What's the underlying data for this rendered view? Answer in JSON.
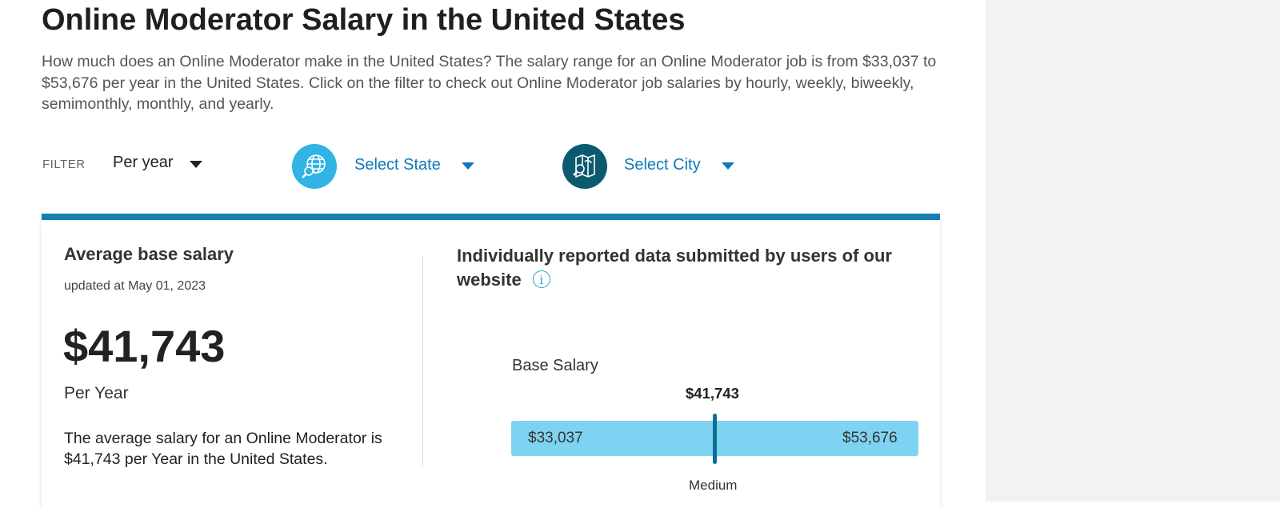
{
  "page": {
    "title": "Online Moderator Salary in the United States",
    "intro": "How much does an Online Moderator make in the United States? The salary range for an Online Moderator job is from $33,037 to $53,676 per year in the United States. Click on the filter to check out Online Moderator job salaries by hourly, weekly, biweekly, semimonthly, monthly, and yearly."
  },
  "filter": {
    "label": "FILTER",
    "period": "Per year",
    "state": "Select State",
    "city": "Select City"
  },
  "summary": {
    "heading": "Average base salary",
    "updated": "updated at May 01, 2023",
    "amount": "$41,743",
    "period": "Per Year",
    "description": "The average salary for an Online Moderator is $41,743 per Year in the United States."
  },
  "reported": {
    "heading": "Individually reported data submitted by users of our website",
    "info_icon": "i",
    "chart_label": "Base Salary",
    "median_value": "$41,743",
    "min": "$33,037",
    "max": "$53,676",
    "median_label": "Medium"
  },
  "colors": {
    "accent": "#167fb4",
    "link": "#0d79b8",
    "state_icon_bg": "#31b3e6",
    "city_icon_bg": "#0b5a70",
    "range_bar": "#7dd3f1",
    "median_marker": "#0c6d96"
  },
  "icons": {
    "state": "globe-search-icon",
    "city": "map-search-icon"
  }
}
